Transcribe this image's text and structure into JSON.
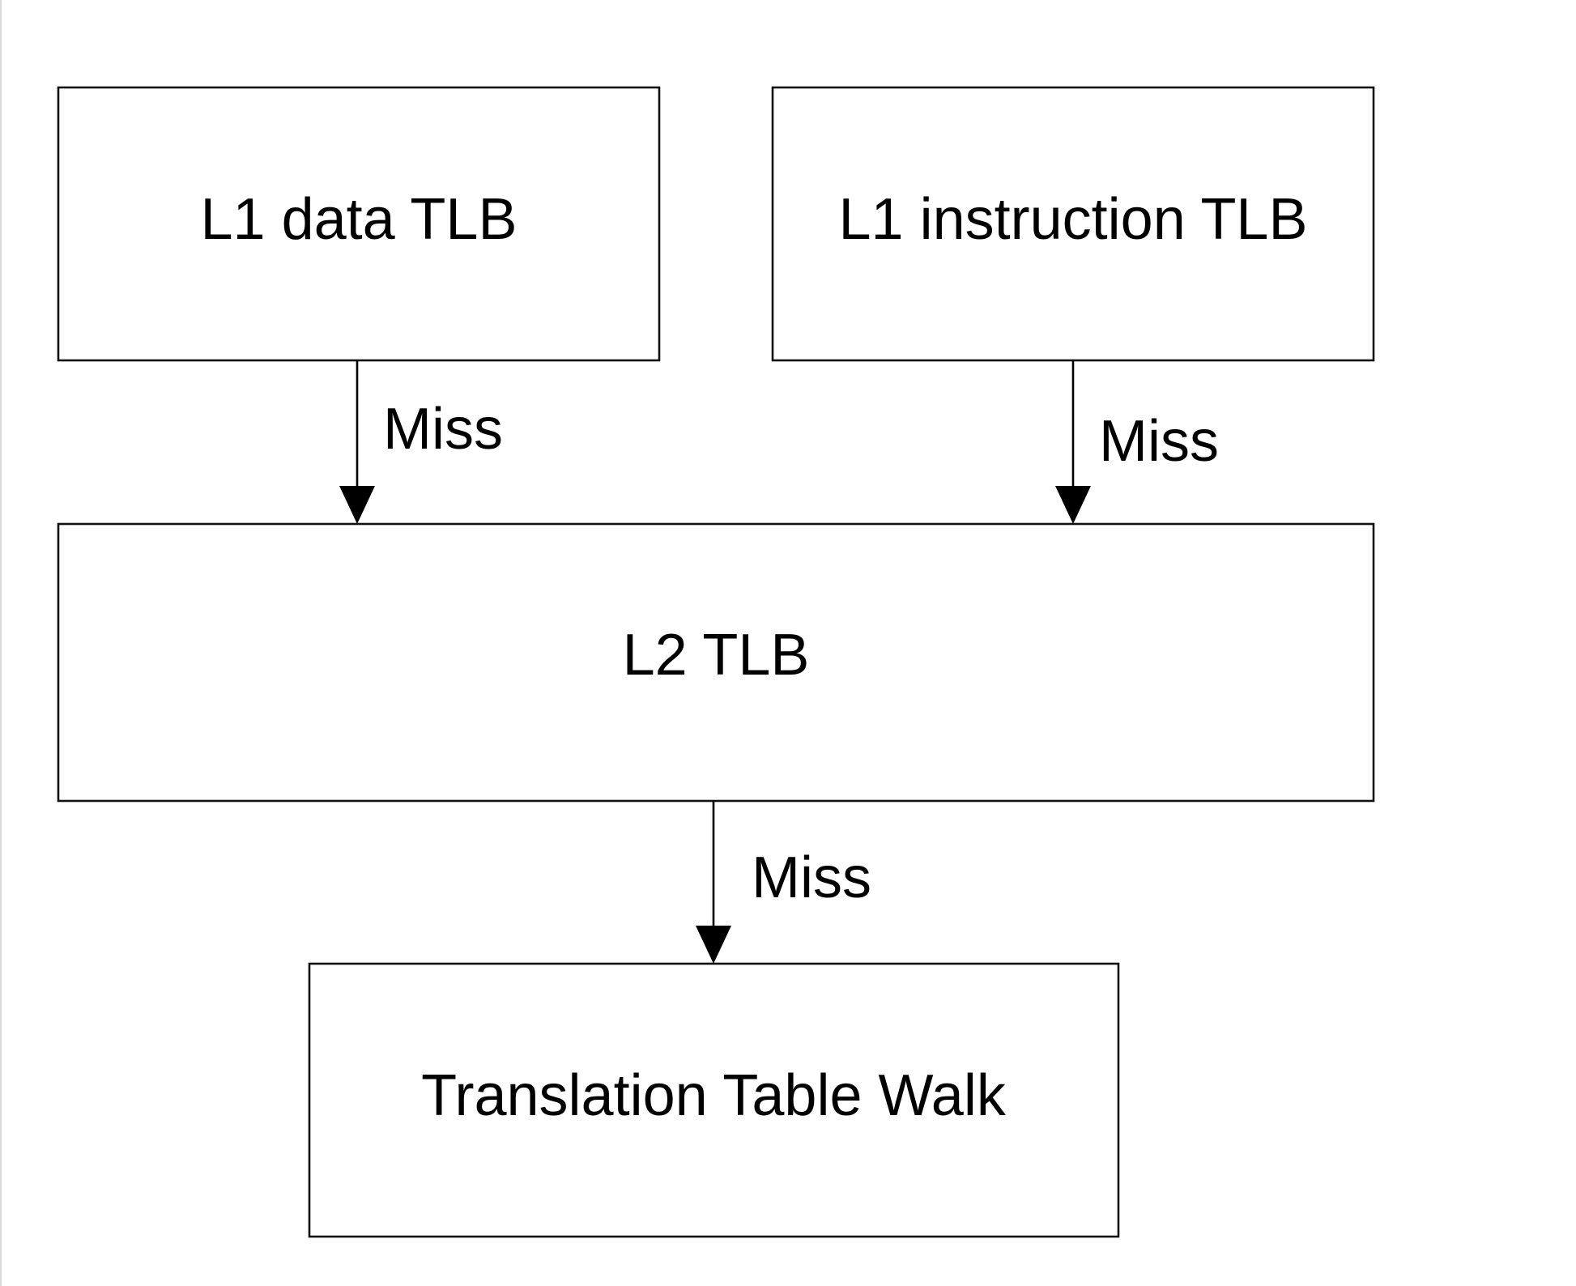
{
  "diagram": {
    "nodes": [
      {
        "id": "l1-data-tlb",
        "label": "L1 data TLB"
      },
      {
        "id": "l1-instruction-tlb",
        "label": "L1 instruction TLB"
      },
      {
        "id": "l2-tlb",
        "label": "L2 TLB"
      },
      {
        "id": "translation-table-walk",
        "label": "Translation Table Walk"
      }
    ],
    "edges": [
      {
        "from": "l1-data-tlb",
        "to": "l2-tlb",
        "label": "Miss"
      },
      {
        "from": "l1-instruction-tlb",
        "to": "l2-tlb",
        "label": "Miss"
      },
      {
        "from": "l2-tlb",
        "to": "translation-table-walk",
        "label": "Miss"
      }
    ]
  }
}
